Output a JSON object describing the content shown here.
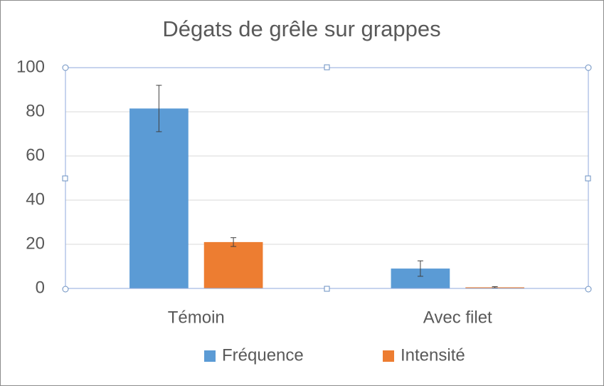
{
  "chart_data": {
    "type": "bar",
    "title": "Dégats de grêle sur grappes",
    "categories": [
      "Témoin",
      "Avec filet"
    ],
    "series": [
      {
        "name": "Fréquence",
        "color": "#5b9bd5",
        "values": [
          81.5,
          9
        ],
        "errors": [
          10.5,
          3.5
        ]
      },
      {
        "name": "Intensité",
        "color": "#ed7d31",
        "values": [
          21,
          0.5
        ],
        "errors": [
          2,
          0.3
        ]
      }
    ],
    "ylim": [
      0,
      100
    ],
    "yticks": [
      0,
      20,
      40,
      60,
      80,
      100
    ],
    "grid": true,
    "legend": "bottom"
  }
}
